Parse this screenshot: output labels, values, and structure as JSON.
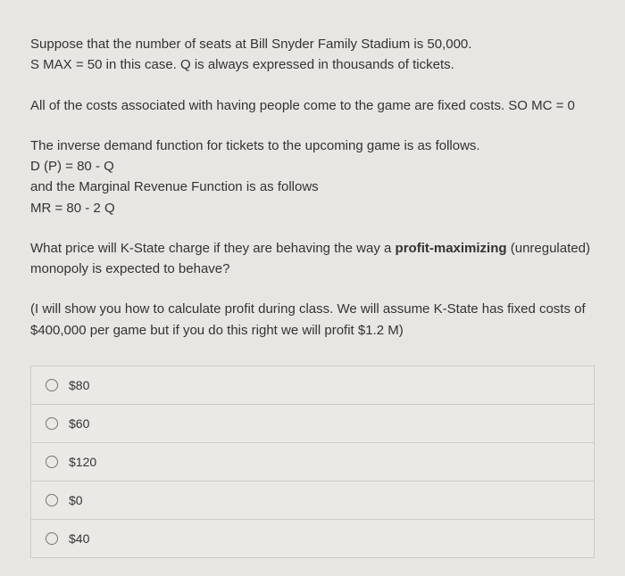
{
  "paragraphs": {
    "p1_l1": "Suppose that the number of seats at Bill Snyder Family Stadium is 50,000.",
    "p1_l2": "S MAX = 50 in this case. Q is always expressed in thousands of tickets.",
    "p2": "All of the costs associated with having people come to the game are fixed costs. SO MC = 0",
    "p3_l1": "The inverse demand function for tickets to the upcoming game is as follows.",
    "p3_l2": "D (P) = 80 - Q",
    "p3_l3": "and the Marginal Revenue Function is as follows",
    "p3_l4": "MR = 80 - 2 Q",
    "p4_pre": "What price will K-State charge if they are behaving the way a ",
    "p4_bold": "profit-maximizing",
    "p4_post": " (unregulated) monopoly is expected to behave?",
    "p5": "(I will show you how to calculate profit during class.  We will assume K-State has fixed costs of $400,000 per game but if you do this right we will profit $1.2 M)"
  },
  "options": [
    "$80",
    "$60",
    "$120",
    "$0",
    "$40"
  ]
}
